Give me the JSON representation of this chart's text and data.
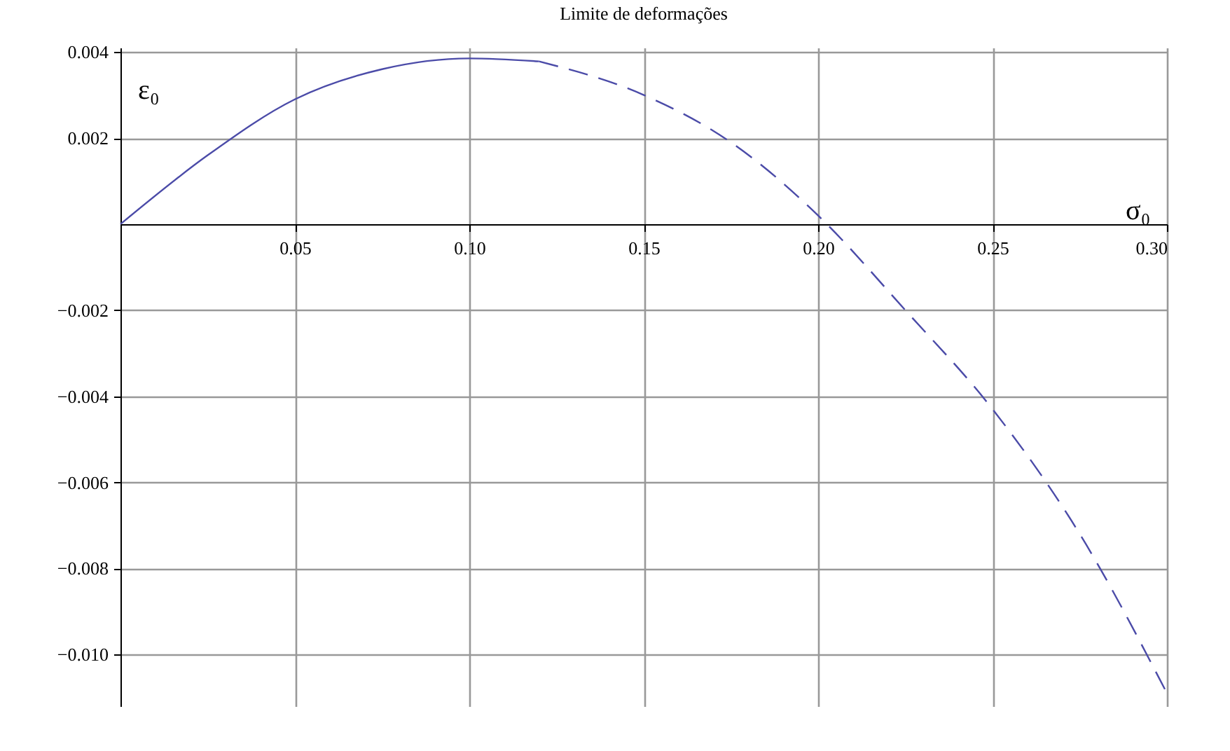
{
  "chart_data": {
    "type": "line",
    "title": "Limite de deformações",
    "xlabel": "σ₀",
    "ylabel": "ε₀",
    "series": [
      {
        "color": "#4b4ba8",
        "line_style": "solid",
        "x": [
          0,
          0.025,
          0.05,
          0.075,
          0.1,
          0.12
        ],
        "values": [
          0,
          0.0016,
          0.0029,
          0.0036,
          0.00385,
          0.00378
        ]
      },
      {
        "color": "#4b4ba8",
        "line_style": "dashed",
        "x": [
          0.12,
          0.15,
          0.175,
          0.2,
          0.225,
          0.25,
          0.275,
          0.3
        ],
        "values": [
          0.00378,
          0.003,
          0.0019,
          0.0002,
          -0.002,
          -0.0043,
          -0.0072,
          -0.0109
        ]
      }
    ],
    "xlim": [
      0,
      0.3
    ],
    "ylim": [
      -0.0112,
      0.0041
    ],
    "xticks": [
      {
        "value": 0.05,
        "label": "0.05"
      },
      {
        "value": 0.1,
        "label": "0.10"
      },
      {
        "value": 0.15,
        "label": "0.15"
      },
      {
        "value": 0.2,
        "label": "0.20"
      },
      {
        "value": 0.25,
        "label": "0.25"
      },
      {
        "value": 0.3,
        "label": "0.30"
      }
    ],
    "yticks": [
      {
        "value": 0.004,
        "label": "0.004"
      },
      {
        "value": 0.002,
        "label": "0.002"
      },
      {
        "value": -0.002,
        "label": "−0.002"
      },
      {
        "value": -0.004,
        "label": "−0.004"
      },
      {
        "value": -0.006,
        "label": "−0.006"
      },
      {
        "value": -0.008,
        "label": "−0.008"
      },
      {
        "value": -0.01,
        "label": "−0.010"
      }
    ],
    "grid": true,
    "legend": false
  }
}
